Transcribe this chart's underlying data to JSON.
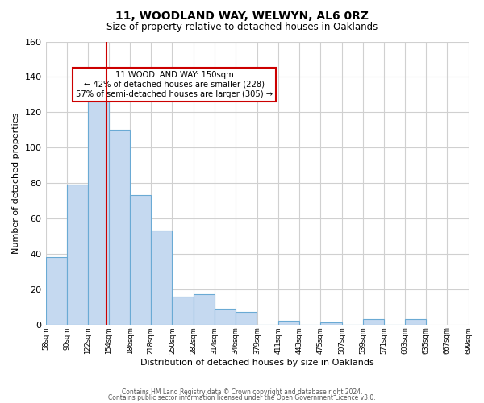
{
  "title1": "11, WOODLAND WAY, WELWYN, AL6 0RZ",
  "title2": "Size of property relative to detached houses in Oaklands",
  "xlabel": "Distribution of detached houses by size in Oaklands",
  "ylabel": "Number of detached properties",
  "bar_values": [
    38,
    79,
    133,
    110,
    73,
    53,
    16,
    17,
    9,
    7,
    0,
    2,
    0,
    1,
    0,
    3,
    0,
    3
  ],
  "bin_left_edges": [
    58,
    90,
    122,
    154,
    186,
    218,
    250,
    282,
    314,
    346,
    379,
    411,
    443,
    475,
    507,
    539,
    571,
    603
  ],
  "bin_width": 32,
  "tick_positions": [
    58,
    90,
    122,
    154,
    186,
    218,
    250,
    282,
    314,
    346,
    379,
    411,
    443,
    475,
    507,
    539,
    571,
    603,
    635,
    667,
    699
  ],
  "tick_labels": [
    "58sqm",
    "90sqm",
    "122sqm",
    "154sqm",
    "186sqm",
    "218sqm",
    "250sqm",
    "282sqm",
    "314sqm",
    "346sqm",
    "379sqm",
    "411sqm",
    "443sqm",
    "475sqm",
    "507sqm",
    "539sqm",
    "571sqm",
    "603sqm",
    "635sqm",
    "667sqm",
    "699sqm"
  ],
  "bar_color": "#c5d9f0",
  "bar_edge_color": "#6aaad4",
  "property_line_x": 150,
  "annotation_line1": "11 WOODLAND WAY: 150sqm",
  "annotation_line2": "← 42% of detached houses are smaller (228)",
  "annotation_line3": "57% of semi-detached houses are larger (305) →",
  "box_color": "#cc0000",
  "xlim": [
    58,
    699
  ],
  "ylim": [
    0,
    160
  ],
  "yticks": [
    0,
    20,
    40,
    60,
    80,
    100,
    120,
    140,
    160
  ],
  "footer1": "Contains HM Land Registry data © Crown copyright and database right 2024.",
  "footer2": "Contains public sector information licensed under the Open Government Licence v3.0."
}
